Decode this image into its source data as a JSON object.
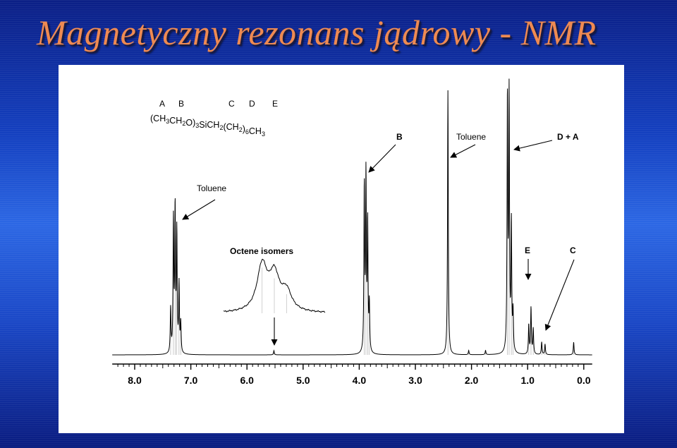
{
  "slide": {
    "title": "Magnetyczny rezonans jądrowy - NMR",
    "colors": {
      "title": "#ee8a52",
      "background": "#1a47c6",
      "panel": "#ffffff"
    }
  },
  "chart_data": {
    "type": "line",
    "xlim": [
      8.4,
      -0.15
    ],
    "x_reversed": true,
    "ticks": [
      8.0,
      7.0,
      6.0,
      5.0,
      4.0,
      3.0,
      2.0,
      1.0,
      0.0
    ],
    "tick_labels": [
      "8.0",
      "7.0",
      "6.0",
      "5.0",
      "4.0",
      "3.0",
      "2.0",
      "1.0",
      "0.0"
    ],
    "minor_tick_step": 0.1,
    "structure": {
      "letters": [
        "A",
        "B",
        "C",
        "D",
        "E"
      ],
      "formula": "(CH3CH2O)3SiCH2(CH2)6CH3"
    },
    "peaks": [
      {
        "ppm": 7.36,
        "height": 0.21
      },
      {
        "ppm": 7.31,
        "height": 0.62
      },
      {
        "ppm": 7.28,
        "height": 0.67
      },
      {
        "ppm": 7.25,
        "height": 0.56
      },
      {
        "ppm": 7.21,
        "height": 0.32
      },
      {
        "ppm": 7.18,
        "height": 0.14
      },
      {
        "ppm": 5.52,
        "height": 0.02
      },
      {
        "ppm": 3.91,
        "height": 0.78
      },
      {
        "ppm": 3.88,
        "height": 0.82
      },
      {
        "ppm": 3.85,
        "height": 0.6
      },
      {
        "ppm": 3.82,
        "height": 0.22
      },
      {
        "ppm": 2.42,
        "height": 1.25
      },
      {
        "ppm": 2.05,
        "height": 0.02
      },
      {
        "ppm": 1.75,
        "height": 0.02
      },
      {
        "ppm": 1.36,
        "height": 1.2
      },
      {
        "ppm": 1.33,
        "height": 1.2
      },
      {
        "ppm": 1.29,
        "height": 0.6
      },
      {
        "ppm": 1.26,
        "height": 0.18
      },
      {
        "ppm": 0.98,
        "height": 0.14
      },
      {
        "ppm": 0.94,
        "height": 0.22
      },
      {
        "ppm": 0.9,
        "height": 0.12
      },
      {
        "ppm": 0.75,
        "height": 0.06
      },
      {
        "ppm": 0.69,
        "height": 0.05
      },
      {
        "ppm": 0.18,
        "height": 0.06
      }
    ],
    "inset": {
      "label": "Octene isomers",
      "peaks": [
        {
          "ppm": 5.56,
          "height": 0.72
        },
        {
          "ppm": 5.5,
          "height": 0.55
        },
        {
          "ppm": 5.44,
          "height": 0.3
        }
      ]
    },
    "annotations": [
      {
        "text": "Toluene",
        "target_ppm": 7.3
      },
      {
        "text": "B",
        "target_ppm": 3.87
      },
      {
        "text": "Toluene",
        "target_ppm": 2.42
      },
      {
        "text": "D + A",
        "target_ppm": 1.34
      },
      {
        "text": "E",
        "target_ppm": 0.94
      },
      {
        "text": "C",
        "target_ppm": 0.72
      }
    ]
  }
}
